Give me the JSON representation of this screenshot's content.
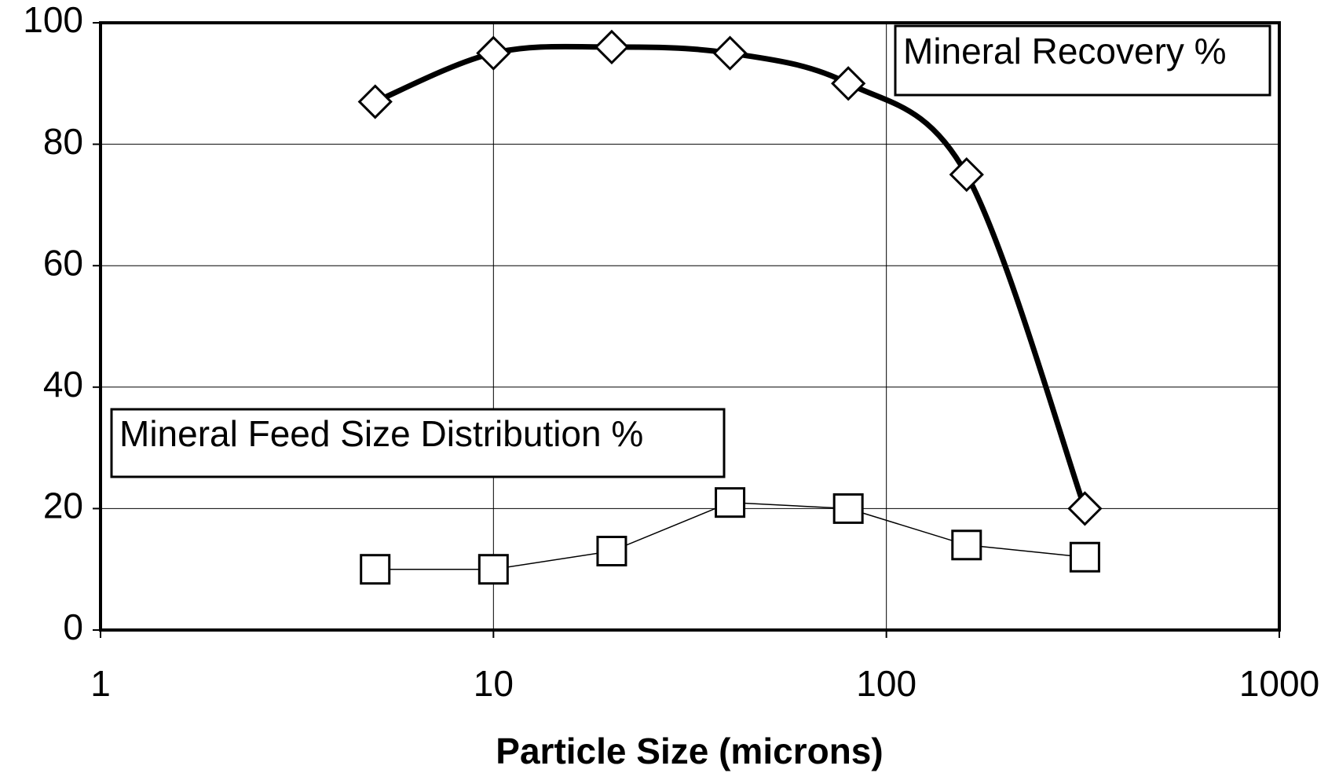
{
  "chart_data": {
    "type": "line",
    "xscale": "log",
    "grid": true,
    "xlabel": "Particle Size (microns)",
    "x": [
      5,
      10,
      20,
      40,
      80,
      160,
      320
    ],
    "series": [
      {
        "name": "Mineral Recovery %",
        "color": "#000000",
        "marker": "diamond",
        "smooth": true,
        "values": [
          87,
          95,
          96,
          95,
          90,
          75,
          20
        ]
      },
      {
        "name": "Mineral Feed Size Distribution %",
        "color": "#000000",
        "marker": "square",
        "smooth": false,
        "values": [
          10,
          10,
          13,
          21,
          20,
          14,
          12
        ]
      }
    ],
    "xlim": [
      1,
      1000
    ],
    "xticks": [
      1,
      10,
      100,
      1000
    ],
    "ylim": [
      0,
      100
    ],
    "yticks": [
      0,
      20,
      40,
      60,
      80,
      100
    ]
  }
}
